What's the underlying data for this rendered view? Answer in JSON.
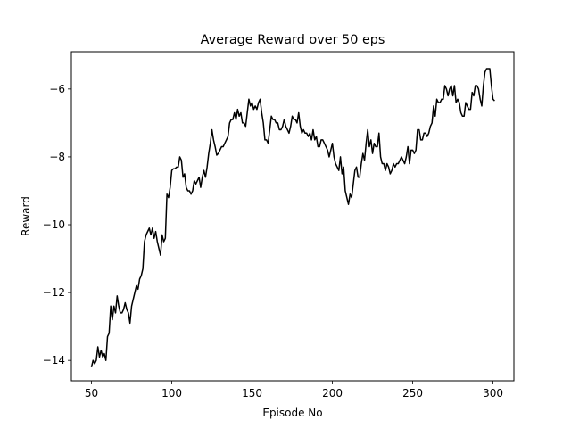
{
  "chart_data": {
    "type": "line",
    "title": "Average Reward over 50 eps",
    "xlabel": "Episode No",
    "ylabel": "Reward",
    "xlim": [
      37.5,
      313
    ],
    "ylim": [
      -14.6,
      -4.9
    ],
    "xticks": [
      50,
      100,
      150,
      200,
      250,
      300
    ],
    "yticks": [
      -14,
      -12,
      -10,
      -8,
      -6
    ],
    "grid": false,
    "series": [
      {
        "color": "#000000",
        "x": [
          50,
          51,
          52,
          53,
          54,
          55,
          56,
          57,
          58,
          59,
          60,
          61,
          62,
          63,
          64,
          65,
          66,
          67,
          68,
          69,
          70,
          71,
          72,
          73,
          74,
          75,
          76,
          77,
          78,
          79,
          80,
          81,
          82,
          83,
          84,
          85,
          86,
          87,
          88,
          89,
          90,
          91,
          92,
          93,
          94,
          95,
          96,
          97,
          98,
          99,
          100,
          101,
          102,
          103,
          104,
          105,
          106,
          107,
          108,
          109,
          110,
          111,
          112,
          113,
          114,
          115,
          116,
          117,
          118,
          119,
          120,
          121,
          122,
          123,
          124,
          125,
          126,
          127,
          128,
          129,
          130,
          131,
          132,
          133,
          134,
          135,
          136,
          137,
          138,
          139,
          140,
          141,
          142,
          143,
          144,
          145,
          146,
          147,
          148,
          149,
          150,
          151,
          152,
          153,
          154,
          155,
          156,
          157,
          158,
          159,
          160,
          161,
          162,
          163,
          164,
          165,
          166,
          167,
          168,
          169,
          170,
          171,
          172,
          173,
          174,
          175,
          176,
          177,
          178,
          179,
          180,
          181,
          182,
          183,
          184,
          185,
          186,
          187,
          188,
          189,
          190,
          191,
          192,
          193,
          194,
          195,
          196,
          197,
          198,
          199,
          200,
          201,
          202,
          203,
          204,
          205,
          206,
          207,
          208,
          209,
          210,
          211,
          212,
          213,
          214,
          215,
          216,
          217,
          218,
          219,
          220,
          221,
          222,
          223,
          224,
          225,
          226,
          227,
          228,
          229,
          230,
          231,
          232,
          233,
          234,
          235,
          236,
          237,
          238,
          239,
          240,
          241,
          242,
          243,
          244,
          245,
          246,
          247,
          248,
          249,
          250,
          251,
          252,
          253,
          254,
          255,
          256,
          257,
          258,
          259,
          260,
          261,
          262,
          263,
          264,
          265,
          266,
          267,
          268,
          269,
          270,
          271,
          272,
          273,
          274,
          275,
          276,
          277,
          278,
          279,
          280,
          281,
          282,
          283,
          284,
          285,
          286,
          287,
          288,
          289,
          290,
          291,
          292,
          293,
          294,
          295,
          296,
          297,
          298,
          299,
          300,
          301
        ],
        "y": [
          -14.2,
          -14.0,
          -14.1,
          -14.0,
          -13.6,
          -13.9,
          -13.7,
          -13.9,
          -13.8,
          -14.0,
          -13.3,
          -13.2,
          -12.4,
          -12.8,
          -12.4,
          -12.6,
          -12.1,
          -12.4,
          -12.6,
          -12.6,
          -12.5,
          -12.3,
          -12.5,
          -12.6,
          -12.9,
          -12.4,
          -12.2,
          -12.0,
          -11.8,
          -11.9,
          -11.6,
          -11.5,
          -11.3,
          -10.5,
          -10.3,
          -10.2,
          -10.1,
          -10.3,
          -10.1,
          -10.4,
          -10.2,
          -10.5,
          -10.7,
          -10.9,
          -10.3,
          -10.5,
          -10.4,
          -9.1,
          -9.2,
          -8.9,
          -8.4,
          -8.35,
          -8.35,
          -8.3,
          -8.3,
          -8.0,
          -8.1,
          -8.6,
          -8.5,
          -8.9,
          -9.0,
          -9.0,
          -9.1,
          -9.0,
          -8.7,
          -8.8,
          -8.7,
          -8.6,
          -8.9,
          -8.6,
          -8.4,
          -8.6,
          -8.3,
          -7.9,
          -7.6,
          -7.2,
          -7.5,
          -7.7,
          -7.95,
          -7.9,
          -7.8,
          -7.7,
          -7.7,
          -7.6,
          -7.5,
          -7.4,
          -7.0,
          -6.9,
          -6.9,
          -6.7,
          -6.9,
          -6.6,
          -6.8,
          -6.7,
          -7.0,
          -7.0,
          -7.1,
          -6.7,
          -6.3,
          -6.5,
          -6.4,
          -6.6,
          -6.5,
          -6.6,
          -6.4,
          -6.3,
          -6.7,
          -7.0,
          -7.5,
          -7.5,
          -7.6,
          -7.2,
          -6.8,
          -6.9,
          -6.9,
          -7.0,
          -7.0,
          -7.2,
          -7.2,
          -7.1,
          -6.9,
          -7.1,
          -7.2,
          -7.3,
          -7.1,
          -6.8,
          -6.9,
          -6.9,
          -7.0,
          -6.7,
          -7.1,
          -7.3,
          -7.2,
          -7.3,
          -7.3,
          -7.4,
          -7.3,
          -7.5,
          -7.2,
          -7.5,
          -7.4,
          -7.7,
          -7.7,
          -7.5,
          -7.5,
          -7.6,
          -7.7,
          -7.8,
          -8.0,
          -7.8,
          -7.6,
          -8.0,
          -8.2,
          -8.3,
          -8.4,
          -8.0,
          -8.5,
          -8.3,
          -9.0,
          -9.2,
          -9.4,
          -9.1,
          -9.2,
          -8.8,
          -8.4,
          -8.3,
          -8.6,
          -8.6,
          -8.2,
          -7.9,
          -8.1,
          -7.6,
          -7.2,
          -7.7,
          -7.5,
          -7.9,
          -7.6,
          -7.7,
          -7.7,
          -7.3,
          -8.0,
          -8.2,
          -8.2,
          -8.4,
          -8.2,
          -8.3,
          -8.5,
          -8.4,
          -8.2,
          -8.3,
          -8.2,
          -8.2,
          -8.1,
          -8.0,
          -8.1,
          -8.2,
          -8.0,
          -7.7,
          -8.2,
          -7.8,
          -7.8,
          -7.9,
          -7.8,
          -7.2,
          -7.2,
          -7.5,
          -7.5,
          -7.3,
          -7.3,
          -7.4,
          -7.3,
          -7.1,
          -7.0,
          -6.5,
          -6.8,
          -6.3,
          -6.4,
          -6.4,
          -6.3,
          -6.3,
          -5.9,
          -6.0,
          -6.2,
          -6.0,
          -5.9,
          -6.2,
          -5.9,
          -6.4,
          -6.3,
          -6.4,
          -6.7,
          -6.8,
          -6.8,
          -6.4,
          -6.5,
          -6.6,
          -6.6,
          -6.1,
          -6.2,
          -5.9,
          -5.9,
          -6.0,
          -6.3,
          -6.5,
          -5.9,
          -5.5,
          -5.4,
          -5.4,
          -5.4,
          -5.9,
          -6.3,
          -6.35
        ]
      }
    ]
  }
}
